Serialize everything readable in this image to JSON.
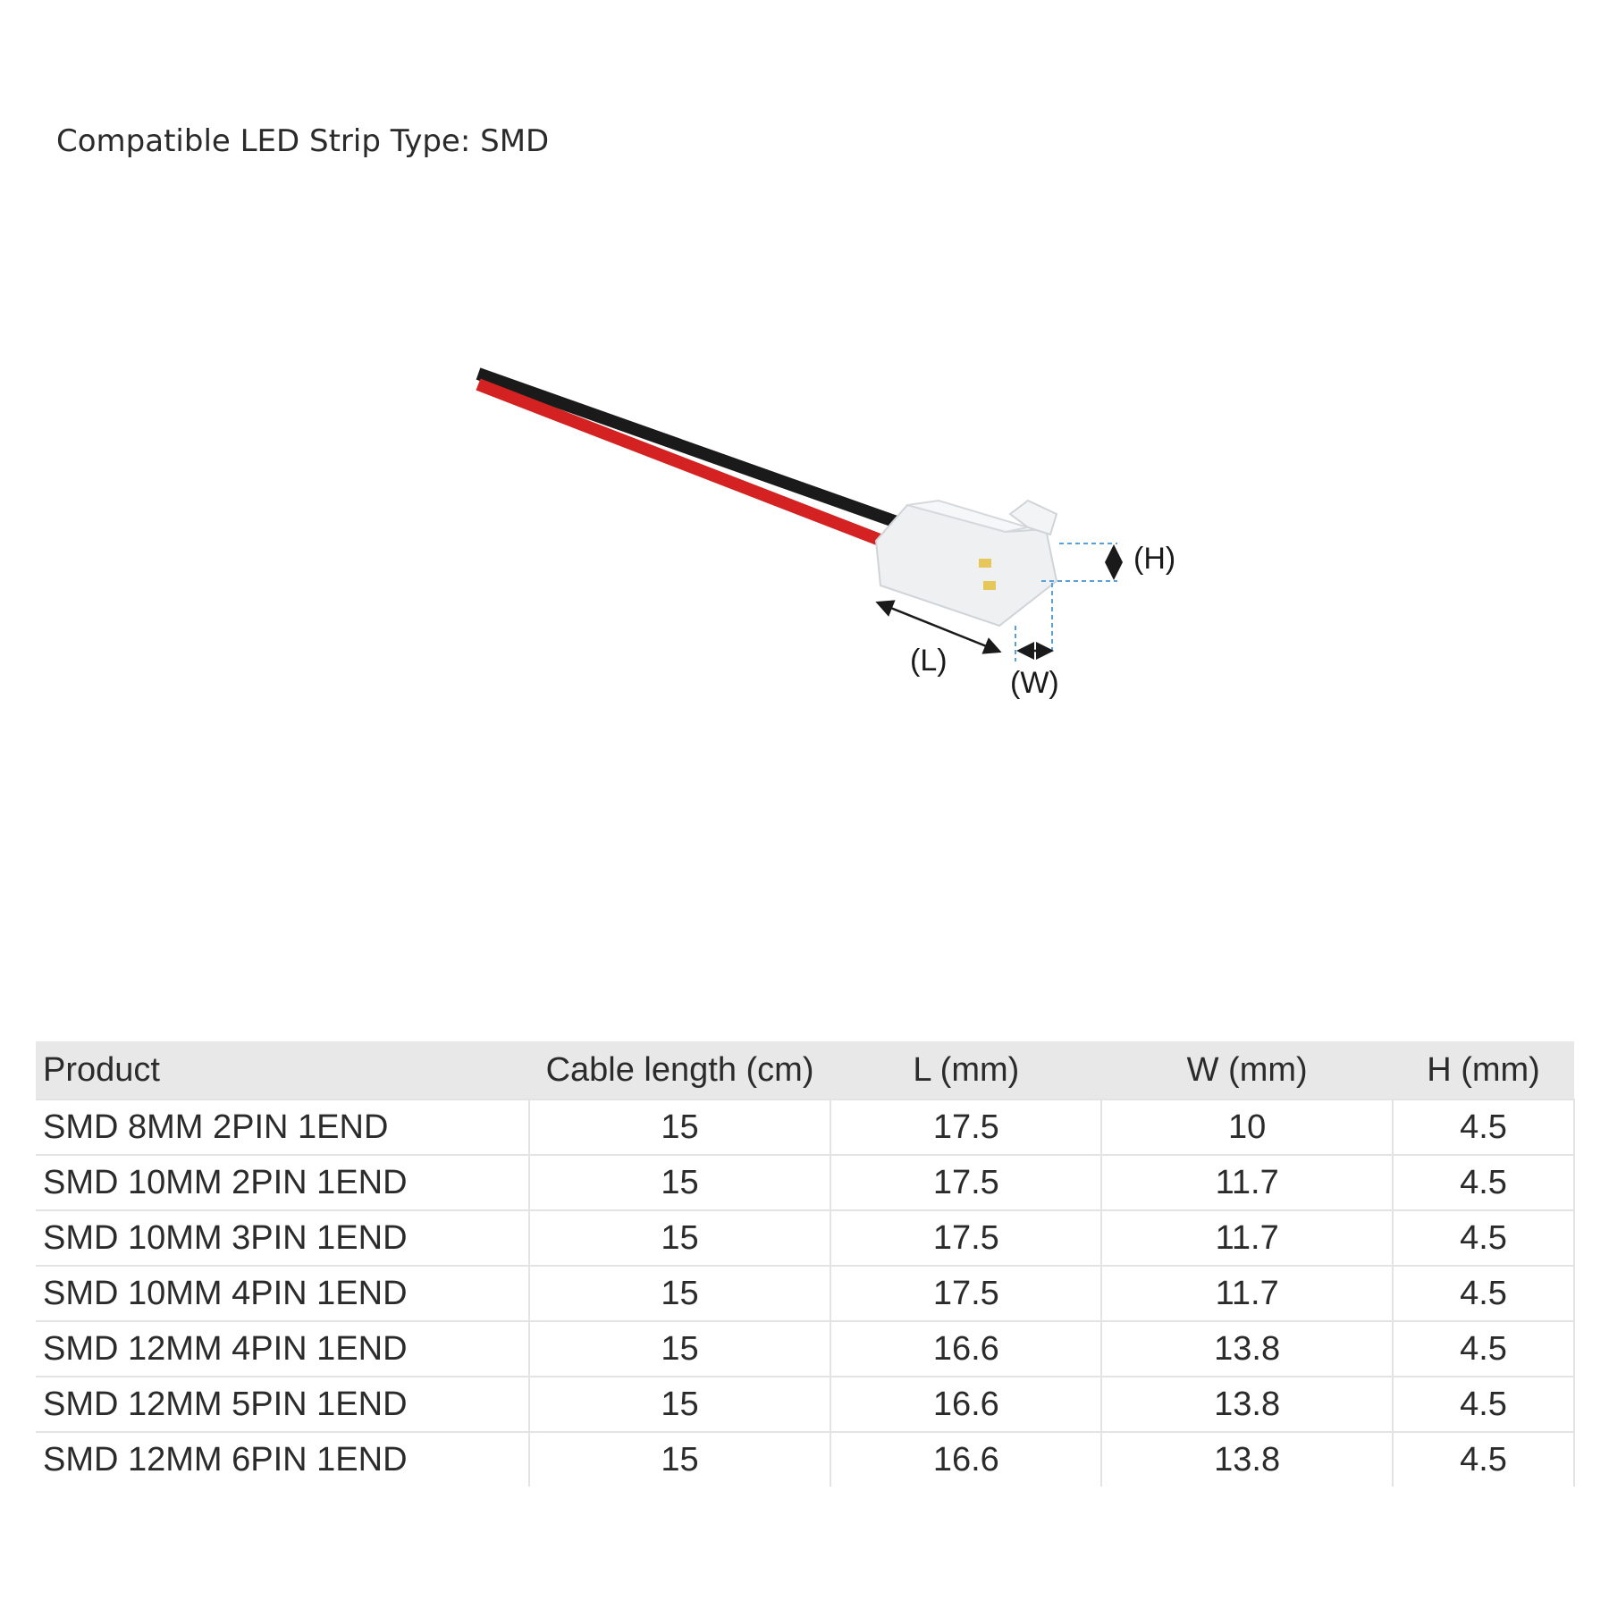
{
  "title": "Compatible LED Strip Type: SMD",
  "diagram": {
    "labels": {
      "h": "(H)",
      "l": "(L)",
      "w": "(W)"
    },
    "colors": {
      "red_wire": "#d42222",
      "black_wire": "#1a1a1a",
      "dimension_line": "#5aa0d8"
    }
  },
  "table": {
    "headers": [
      "Product",
      "Cable length (cm)",
      "L (mm)",
      "W (mm)",
      "H (mm)"
    ],
    "rows": [
      [
        "SMD 8MM 2PIN 1END",
        "15",
        "17.5",
        "10",
        "4.5"
      ],
      [
        "SMD 10MM 2PIN 1END",
        "15",
        "17.5",
        "11.7",
        "4.5"
      ],
      [
        "SMD 10MM 3PIN 1END",
        "15",
        "17.5",
        "11.7",
        "4.5"
      ],
      [
        "SMD 10MM 4PIN 1END",
        "15",
        "17.5",
        "11.7",
        "4.5"
      ],
      [
        "SMD 12MM 4PIN 1END",
        "15",
        "16.6",
        "13.8",
        "4.5"
      ],
      [
        "SMD 12MM 5PIN 1END",
        "15",
        "16.6",
        "13.8",
        "4.5"
      ],
      [
        "SMD 12MM 6PIN 1END",
        "15",
        "16.6",
        "13.8",
        "4.5"
      ]
    ]
  }
}
